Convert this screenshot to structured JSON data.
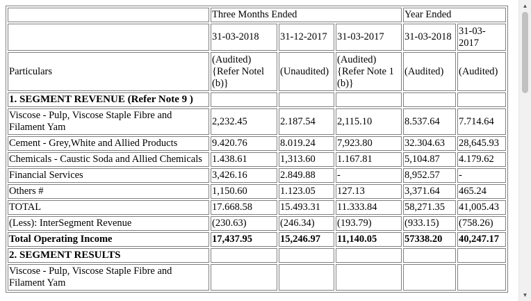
{
  "header": {
    "three_months": "Three Months Ended",
    "year_ended": "Year Ended",
    "dates": [
      "31-03-2018",
      "31-12-2017",
      "31-03-2017",
      "31-03-2018",
      "31-03-2017"
    ],
    "particulars": "Particulars",
    "status": [
      "(Audited) {Refer Notel (b)}",
      "(Unaudited)",
      "(Audited) {Refer Note 1 (b)}",
      "(Audited)",
      "(Audited)"
    ]
  },
  "rows": [
    {
      "label": "1. SEGMENT REVENUE (Refer Note 9 )",
      "values": [
        "",
        "",
        "",
        "",
        ""
      ]
    },
    {
      "label": "Viscose - Pulp, Viscose Staple Fibre and Filament Yam",
      "values": [
        "2,232.45",
        "2.187.54",
        "2,115.10",
        "8.537.64",
        "7.714.64"
      ]
    },
    {
      "label": "Cement - Grey,White and Allied Products",
      "values": [
        "9.420.76",
        "8.019.24",
        "7,923.80",
        "32.304.63",
        "28,645.93"
      ]
    },
    {
      "label": "Chemicals - Caustic Soda and Allied Chemicals",
      "values": [
        "1.438.61",
        "1,313.60",
        "1.167.81",
        "5,104.87",
        "4.179.62"
      ]
    },
    {
      "label": "Financial Services",
      "values": [
        "3,426.16",
        "2.849.88",
        "-",
        "8,952.57",
        "-"
      ]
    },
    {
      "label": "Others #",
      "values": [
        "1,150.60",
        "1.123.05",
        "127.13",
        "3,371.64",
        "465.24"
      ]
    },
    {
      "label": "TOTAL",
      "values": [
        "17.668.58",
        "15.493.31",
        "11.333.84",
        "58,271.35",
        "41,005.43"
      ]
    },
    {
      "label": "(Less): InterSegment Revenue",
      "values": [
        "(230.63)",
        "(246.34)",
        "(193.79)",
        "(933.15)",
        "(758.26)"
      ]
    },
    {
      "label": "Total Operating Income",
      "values": [
        "17,437.95",
        "15,246.97",
        "11,140.05",
        "57338.20",
        "40,247.17"
      ]
    },
    {
      "label": "2. SEGMENT RESULTS",
      "values": [
        "",
        "",
        "",
        "",
        ""
      ]
    },
    {
      "label": "Viscose - Pulp, Viscose Staple Fibre and Filament Yam",
      "values": [
        "",
        "",
        "",
        "",
        ""
      ]
    }
  ],
  "scrollbar": {
    "up": "▲",
    "down": "▼"
  }
}
